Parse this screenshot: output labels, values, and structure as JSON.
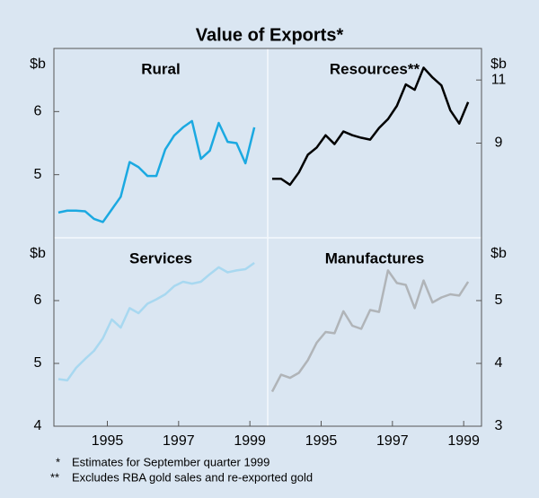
{
  "title": "Value of Exports*",
  "notes": [
    {
      "marker": "*",
      "text": "Estimates for September quarter 1999"
    },
    {
      "marker": "**",
      "text": "Excludes RBA gold sales and re-exported gold"
    }
  ],
  "chart_data": [
    {
      "type": "line",
      "title": "Rural",
      "y_label": "$b",
      "color": "#1ba9e1",
      "x": [
        1994.125,
        1994.375,
        1994.625,
        1994.875,
        1995.125,
        1995.375,
        1995.625,
        1995.875,
        1996.125,
        1996.375,
        1996.625,
        1996.875,
        1997.125,
        1997.375,
        1997.625,
        1997.875,
        1998.125,
        1998.375,
        1998.625,
        1998.875,
        1999.125,
        1999.375,
        1999.625
      ],
      "values": [
        4.4,
        4.43,
        4.43,
        4.42,
        4.3,
        4.25,
        4.45,
        4.65,
        5.2,
        5.12,
        4.98,
        4.98,
        5.4,
        5.62,
        5.75,
        5.85,
        5.25,
        5.38,
        5.82,
        5.52,
        5.5,
        5.18,
        5.75
      ],
      "xlim": [
        1994,
        2000
      ],
      "ylim": [
        4,
        7
      ],
      "yticks": [
        5,
        6
      ]
    },
    {
      "type": "line",
      "title": "Resources**",
      "y_label": "$b",
      "color": "#000000",
      "x": [
        1994.125,
        1994.375,
        1994.625,
        1994.875,
        1995.125,
        1995.375,
        1995.625,
        1995.875,
        1996.125,
        1996.375,
        1996.625,
        1996.875,
        1997.125,
        1997.375,
        1997.625,
        1997.875,
        1998.125,
        1998.375,
        1998.625,
        1998.875,
        1999.125,
        1999.375,
        1999.625
      ],
      "values": [
        7.87,
        7.87,
        7.68,
        8.07,
        8.63,
        8.86,
        9.25,
        8.97,
        9.37,
        9.25,
        9.17,
        9.11,
        9.48,
        9.76,
        10.18,
        10.86,
        10.69,
        11.39,
        11.08,
        10.83,
        10.04,
        9.62,
        10.3
      ],
      "xlim": [
        1994,
        2000
      ],
      "ylim": [
        6,
        12
      ],
      "yticks": [
        9,
        11
      ]
    },
    {
      "type": "line",
      "title": "Services",
      "y_label": "$b",
      "color": "#a8d8f0",
      "x": [
        1994.125,
        1994.375,
        1994.625,
        1994.875,
        1995.125,
        1995.375,
        1995.625,
        1995.875,
        1996.125,
        1996.375,
        1996.625,
        1996.875,
        1997.125,
        1997.375,
        1997.625,
        1997.875,
        1998.125,
        1998.375,
        1998.625,
        1998.875,
        1999.125,
        1999.375,
        1999.625
      ],
      "values": [
        4.75,
        4.73,
        4.93,
        5.07,
        5.2,
        5.4,
        5.7,
        5.57,
        5.88,
        5.8,
        5.95,
        6.02,
        6.1,
        6.23,
        6.3,
        6.27,
        6.3,
        6.42,
        6.53,
        6.45,
        6.48,
        6.5,
        6.6
      ],
      "xlim": [
        1994,
        2000
      ],
      "ylim": [
        4,
        7
      ],
      "yticks": [
        4,
        5,
        6
      ],
      "xticks": [
        {
          "value": 1995.5,
          "label": "1995"
        },
        {
          "value": 1997.5,
          "label": "1997"
        },
        {
          "value": 1999.5,
          "label": "1999"
        }
      ]
    },
    {
      "type": "line",
      "title": "Manufactures",
      "y_label": "$b",
      "color": "#b0b4b8",
      "x": [
        1994.125,
        1994.375,
        1994.625,
        1994.875,
        1995.125,
        1995.375,
        1995.625,
        1995.875,
        1996.125,
        1996.375,
        1996.625,
        1996.875,
        1997.125,
        1997.375,
        1997.625,
        1997.875,
        1998.125,
        1998.375,
        1998.625,
        1998.875,
        1999.125,
        1999.375,
        1999.625
      ],
      "values": [
        3.55,
        3.82,
        3.77,
        3.85,
        4.05,
        4.33,
        4.5,
        4.48,
        4.83,
        4.6,
        4.55,
        4.85,
        4.82,
        5.48,
        5.28,
        5.25,
        4.88,
        5.32,
        4.97,
        5.05,
        5.1,
        5.08,
        5.3
      ],
      "xlim": [
        1994,
        2000
      ],
      "ylim": [
        3,
        6
      ],
      "yticks": [
        3,
        4,
        5
      ],
      "xticks": [
        {
          "value": 1995.5,
          "label": "1995"
        },
        {
          "value": 1997.5,
          "label": "1997"
        },
        {
          "value": 1999.5,
          "label": "1999"
        }
      ]
    }
  ]
}
